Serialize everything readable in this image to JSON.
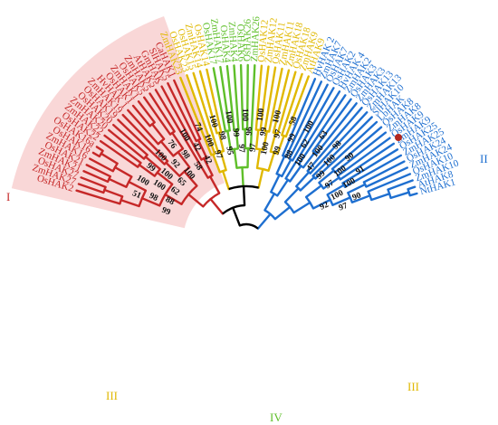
{
  "colors": {
    "clade_I": "#c62828",
    "clade_II": "#1e6fd0",
    "clade_III": "#e0b800",
    "clade_IV": "#5fbf2a",
    "backbone": "#000000",
    "highlight_I": "#f7c9c9",
    "marker": "#b3271e"
  },
  "clade_labels": [
    "I",
    "II",
    "III",
    "III",
    "IV"
  ],
  "leaves": [
    "OsHAK2",
    "ZmHAK27",
    "OsHAK27",
    "ZmHAK21",
    "OsHAK21",
    "ZmHAK16",
    "OsHAK16",
    "OsHAK16a",
    "OsHAK22",
    "ZmHAK22",
    "ZmHAK20",
    "OsHAK20",
    "OsHAK19",
    "ZmHAK19",
    "HvHAK 1",
    "OsHAK1",
    "ZmHAK1",
    "OsHAK5",
    "ZmHAK5",
    "AtHAK5",
    "GmHAK",
    "SlHAK5",
    "CaHAK1",
    "ZmHAK23",
    "OsHAK23",
    "OsHAK15",
    "ZmHAK14",
    "OsHAK14",
    "OsHAK17",
    "ZmHAK17",
    "OsHAK4",
    "ZmHAK4",
    "OsHAK6",
    "OsHAK26",
    "ZmHAK26",
    "OsHAK12",
    "ZmHAK12",
    "OsHAK11",
    "ZmHAK11",
    "ZmHAK18",
    "OsHAK18",
    "ZmHAK9",
    "AtHAK9",
    "HvHAK 2",
    "ZmHAK7",
    "OsHAK7",
    "OsHAK2",
    "HvHAK 4",
    "ZmHAK2",
    "OsHAK3",
    "ZmHAK3",
    "OsHAK13",
    "ZmHAK13",
    "SlHAK10",
    "LbHAK",
    "OsHAK8",
    "ZmHAK8",
    "OsHAK9",
    "ZmHAK9",
    "OsHAK25",
    "ZmHAK25",
    "OsHAK24",
    "ZmHAK24",
    "OsHAK10",
    "ZmHAK10",
    "AtHAK8",
    "NtHAK1"
  ],
  "bootstrap_values": [
    "99",
    "51",
    "98",
    "88",
    "100",
    "100",
    "62",
    "99",
    "100",
    "65",
    "100",
    "92",
    "100",
    "76",
    "98",
    "58",
    "100",
    "42",
    "42",
    "74",
    "100",
    "97",
    "100",
    "98",
    "95",
    "100",
    "99",
    "97",
    "100",
    "96",
    "97",
    "100",
    "99",
    "100",
    "100",
    "97",
    "99",
    "58",
    "99",
    "88",
    "100",
    "62",
    "100",
    "63",
    "100",
    "47",
    "98",
    "100",
    "99",
    "90",
    "100",
    "97",
    "91",
    "100",
    "100",
    "92",
    "90",
    "97"
  ]
}
